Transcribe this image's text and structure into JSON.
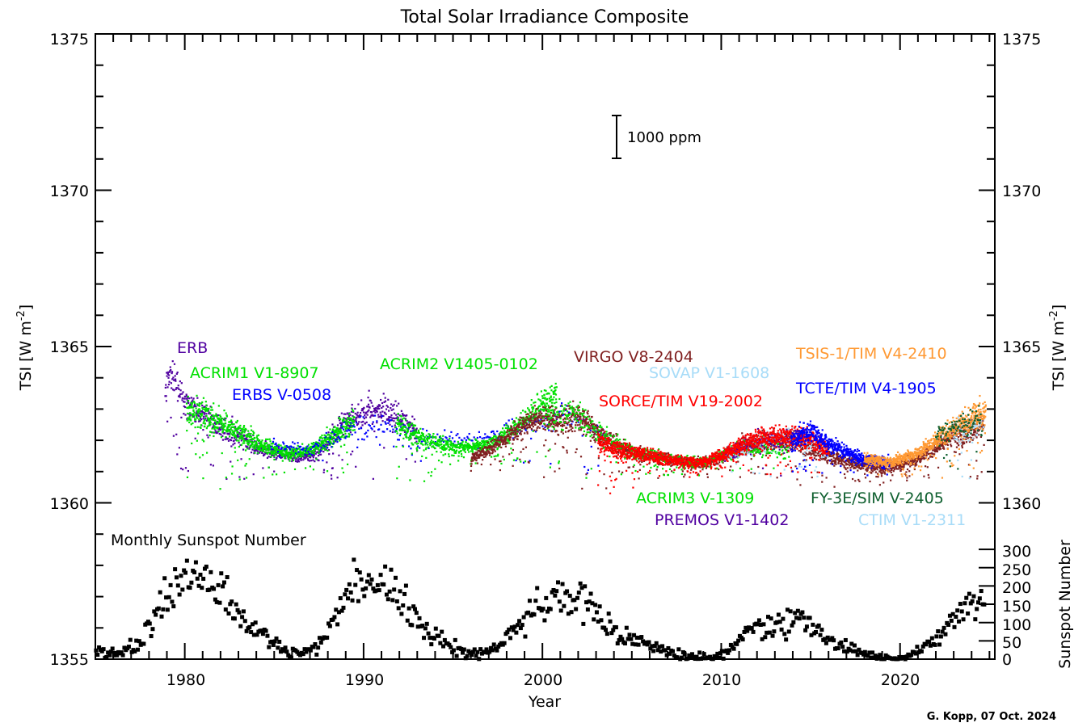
{
  "chart_data": {
    "type": "scatter",
    "title": "Total Solar Irradiance Composite",
    "xlabel": "Year",
    "ylabel": "TSI [W m",
    "ylabel_sup": "-2",
    "ylabel_end": "]",
    "y2label": "Sunspot Number",
    "xlim": [
      1975,
      2025.3
    ],
    "ylim": [
      1355,
      1375
    ],
    "y2lim": [
      0,
      340
    ],
    "grid": false,
    "x_ticks": [
      "1980",
      "1990",
      "2000",
      "2010",
      "2020"
    ],
    "y_ticks": [
      "1355",
      "1360",
      "1365",
      "1370",
      "1375"
    ],
    "y2_ticks": [
      "0",
      "50",
      "100",
      "150",
      "200",
      "250",
      "300"
    ],
    "scale_bar": {
      "label": "1000 ppm",
      "ppm": 1000
    },
    "sunspot_label": "Monthly Sunspot Number",
    "credit": "G. Kopp, 07 Oct. 2024",
    "sunspot_yearly": [
      [
        1975,
        16
      ],
      [
        1976,
        18
      ],
      [
        1977,
        39
      ],
      [
        1978,
        130
      ],
      [
        1979,
        220
      ],
      [
        1980,
        219
      ],
      [
        1981,
        199
      ],
      [
        1982,
        162
      ],
      [
        1983,
        91
      ],
      [
        1984,
        60
      ],
      [
        1985,
        21
      ],
      [
        1986,
        15
      ],
      [
        1987,
        34
      ],
      [
        1988,
        123
      ],
      [
        1989,
        211
      ],
      [
        1990,
        192
      ],
      [
        1991,
        203
      ],
      [
        1992,
        133
      ],
      [
        1993,
        76
      ],
      [
        1994,
        45
      ],
      [
        1995,
        25
      ],
      [
        1996,
        12
      ],
      [
        1997,
        29
      ],
      [
        1998,
        88
      ],
      [
        1999,
        136
      ],
      [
        2000,
        174
      ],
      [
        2001,
        170
      ],
      [
        2002,
        164
      ],
      [
        2003,
        99
      ],
      [
        2004,
        65
      ],
      [
        2005,
        46
      ],
      [
        2006,
        25
      ],
      [
        2007,
        13
      ],
      [
        2008,
        4
      ],
      [
        2009,
        5
      ],
      [
        2010,
        25
      ],
      [
        2011,
        81
      ],
      [
        2012,
        85
      ],
      [
        2013,
        94
      ],
      [
        2014,
        113
      ],
      [
        2015,
        70
      ],
      [
        2016,
        40
      ],
      [
        2017,
        22
      ],
      [
        2018,
        7
      ],
      [
        2019,
        4
      ],
      [
        2020,
        9
      ],
      [
        2021,
        30
      ],
      [
        2022,
        83
      ],
      [
        2023,
        126
      ],
      [
        2024,
        170
      ]
    ],
    "series": [
      {
        "name": "ERB",
        "color": "#5000a0",
        "density": 60,
        "values": [
          [
            1978.9,
            1363.5
          ],
          [
            1979.3,
            1364.2
          ],
          [
            1980,
            1363.2
          ],
          [
            1981,
            1362.8
          ],
          [
            1982,
            1362.4
          ],
          [
            1983,
            1362.1
          ],
          [
            1984,
            1361.8
          ],
          [
            1985,
            1361.6
          ],
          [
            1986,
            1361.5
          ],
          [
            1987,
            1361.5
          ],
          [
            1988,
            1361.9
          ],
          [
            1989,
            1362.6
          ],
          [
            1990,
            1362.9
          ],
          [
            1991,
            1363.0
          ],
          [
            1992,
            1362.7
          ],
          [
            1993,
            1362.2
          ]
        ]
      },
      {
        "name": "ACRIM1 V1-8907",
        "color": "#00e000",
        "density": 90,
        "values": [
          [
            1980.1,
            1363.0
          ],
          [
            1981,
            1362.8
          ],
          [
            1982,
            1362.6
          ],
          [
            1983,
            1362.3
          ],
          [
            1984,
            1361.9
          ],
          [
            1985,
            1361.7
          ],
          [
            1986,
            1361.6
          ],
          [
            1987,
            1361.7
          ],
          [
            1988,
            1362.0
          ],
          [
            1989,
            1362.5
          ],
          [
            1989.5,
            1362.7
          ]
        ]
      },
      {
        "name": "ERBS V-0508",
        "color": "#0000ff",
        "density": 18,
        "values": [
          [
            1984.8,
            1361.9
          ],
          [
            1987,
            1361.7
          ],
          [
            1989,
            1362.3
          ],
          [
            1991,
            1362.5
          ],
          [
            1993,
            1362.1
          ],
          [
            1995,
            1362.0
          ],
          [
            1997,
            1362.1
          ],
          [
            1999,
            1362.5
          ],
          [
            2001,
            1362.9
          ],
          [
            2003,
            1362.4
          ],
          [
            2003.5,
            1362.1
          ]
        ]
      },
      {
        "name": "ACRIM2 V1405-0102",
        "color": "#00e000",
        "density": 80,
        "values": [
          [
            1991.8,
            1362.5
          ],
          [
            1993,
            1362.1
          ],
          [
            1994,
            1361.9
          ],
          [
            1995,
            1361.8
          ],
          [
            1996,
            1361.8
          ],
          [
            1997,
            1361.9
          ],
          [
            1998,
            1362.2
          ],
          [
            1999,
            1362.7
          ],
          [
            2000,
            1363.2
          ],
          [
            2000.8,
            1363.5
          ]
        ]
      },
      {
        "name": "VIRGO V8-2404",
        "color": "#802020",
        "density": 90,
        "values": [
          [
            1996,
            1361.4
          ],
          [
            1997,
            1361.7
          ],
          [
            1998,
            1362.1
          ],
          [
            1999,
            1362.5
          ],
          [
            2000,
            1362.7
          ],
          [
            2001,
            1362.6
          ],
          [
            2002,
            1362.8
          ],
          [
            2003,
            1362.2
          ],
          [
            2004,
            1361.9
          ],
          [
            2005,
            1361.6
          ],
          [
            2006,
            1361.5
          ],
          [
            2007,
            1361.4
          ],
          [
            2008,
            1361.3
          ],
          [
            2009,
            1361.3
          ],
          [
            2010,
            1361.5
          ],
          [
            2011,
            1361.8
          ],
          [
            2012,
            1361.9
          ],
          [
            2013,
            1362.0
          ],
          [
            2014,
            1362.0
          ],
          [
            2015,
            1361.8
          ],
          [
            2016,
            1361.5
          ],
          [
            2017,
            1361.3
          ],
          [
            2018,
            1361.2
          ],
          [
            2019,
            1361.1
          ],
          [
            2020,
            1361.2
          ],
          [
            2021,
            1361.4
          ],
          [
            2022,
            1361.8
          ],
          [
            2023,
            1362.1
          ],
          [
            2024,
            1362.3
          ],
          [
            2024.7,
            1362.4
          ]
        ]
      },
      {
        "name": "ACRIM3 V-1309",
        "color": "#00e000",
        "density": 40,
        "values": [
          [
            2000,
            1362.9
          ],
          [
            2002,
            1362.8
          ],
          [
            2003,
            1362.3
          ],
          [
            2005,
            1361.6
          ],
          [
            2007,
            1361.4
          ],
          [
            2009,
            1361.3
          ],
          [
            2011,
            1361.7
          ],
          [
            2013,
            1361.8
          ],
          [
            2013.8,
            1361.7
          ]
        ]
      },
      {
        "name": "SOVAP V1-1608",
        "color": "#a8dcf8",
        "density": 40,
        "values": [
          [
            2010.2,
            1361.5
          ],
          [
            2011,
            1361.7
          ],
          [
            2012,
            1361.9
          ],
          [
            2013,
            1362.0
          ],
          [
            2014,
            1362.1
          ],
          [
            2015,
            1361.9
          ],
          [
            2016,
            1361.6
          ]
        ]
      },
      {
        "name": "PREMOS V1-1402",
        "color": "#5000a0",
        "density": 40,
        "values": [
          [
            2010.2,
            1361.5
          ],
          [
            2011,
            1361.8
          ],
          [
            2012,
            1362.0
          ],
          [
            2013,
            1362.0
          ],
          [
            2014,
            1361.9
          ]
        ]
      },
      {
        "name": "SORCE/TIM V19-2002",
        "color": "#ff0000",
        "density": 110,
        "values": [
          [
            2003.1,
            1362.0
          ],
          [
            2004,
            1361.7
          ],
          [
            2005,
            1361.6
          ],
          [
            2006,
            1361.5
          ],
          [
            2007,
            1361.4
          ],
          [
            2008,
            1361.3
          ],
          [
            2009,
            1361.3
          ],
          [
            2010,
            1361.5
          ],
          [
            2011,
            1361.8
          ],
          [
            2012,
            1362.0
          ],
          [
            2013,
            1362.1
          ],
          [
            2014,
            1362.1
          ],
          [
            2015,
            1362.1
          ],
          [
            2016,
            1361.7
          ]
        ]
      },
      {
        "name": "TCTE/TIM V4-1905",
        "color": "#0000ff",
        "density": 110,
        "values": [
          [
            2013.9,
            1362.0
          ],
          [
            2014.5,
            1362.2
          ],
          [
            2015,
            1362.3
          ],
          [
            2016,
            1361.9
          ],
          [
            2017,
            1361.6
          ],
          [
            2018,
            1361.4
          ],
          [
            2019,
            1361.3
          ],
          [
            2019.5,
            1361.3
          ]
        ]
      },
      {
        "name": "CTIM V1-2311",
        "color": "#a8dcf8",
        "density": 40,
        "values": [
          [
            2023,
            1362.2
          ],
          [
            2024,
            1362.4
          ],
          [
            2024.7,
            1362.5
          ]
        ]
      },
      {
        "name": "TSIS-1/TIM V4-2410",
        "color": "#ff9933",
        "density": 110,
        "values": [
          [
            2018,
            1361.4
          ],
          [
            2019,
            1361.3
          ],
          [
            2020,
            1361.4
          ],
          [
            2021,
            1361.6
          ],
          [
            2022,
            1362.0
          ],
          [
            2023,
            1362.4
          ],
          [
            2024,
            1362.7
          ],
          [
            2024.8,
            1362.9
          ]
        ]
      },
      {
        "name": "FY-3E/SIM V-2405",
        "color": "#106030",
        "density": 40,
        "values": [
          [
            2022,
            1362.2
          ],
          [
            2023,
            1362.4
          ],
          [
            2024,
            1362.6
          ],
          [
            2024.6,
            1362.6
          ]
        ]
      }
    ]
  }
}
